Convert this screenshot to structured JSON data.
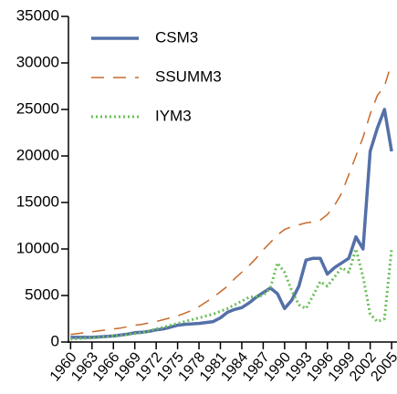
{
  "chart_data": {
    "type": "line",
    "x": [
      1960,
      1961,
      1962,
      1963,
      1964,
      1965,
      1966,
      1967,
      1968,
      1969,
      1970,
      1971,
      1972,
      1973,
      1974,
      1975,
      1976,
      1977,
      1978,
      1979,
      1980,
      1981,
      1982,
      1983,
      1984,
      1985,
      1986,
      1987,
      1988,
      1989,
      1990,
      1991,
      1992,
      1993,
      1994,
      1995,
      1996,
      1997,
      1998,
      1999,
      2000,
      2001,
      2002,
      2003,
      2004,
      2005
    ],
    "series": [
      {
        "name": "CSM3",
        "color": "#5470a8",
        "style": "solid",
        "values": [
          500,
          500,
          500,
          500,
          550,
          600,
          650,
          750,
          850,
          1000,
          1050,
          1150,
          1300,
          1400,
          1600,
          1800,
          1900,
          1950,
          2000,
          2100,
          2200,
          2600,
          3200,
          3500,
          3700,
          4200,
          4800,
          5300,
          5800,
          5200,
          3600,
          4500,
          6000,
          8800,
          9000,
          9000,
          7300,
          8000,
          8500,
          9000,
          11300,
          10000,
          20500,
          23000,
          25000,
          20500
        ]
      },
      {
        "name": "SSUMM3",
        "color": "#c8692a",
        "style": "dashed",
        "values": [
          800,
          900,
          1000,
          1100,
          1200,
          1300,
          1400,
          1500,
          1650,
          1800,
          1900,
          2050,
          2200,
          2400,
          2600,
          2800,
          3100,
          3400,
          3800,
          4300,
          4800,
          5400,
          6000,
          6800,
          7500,
          8200,
          9000,
          9900,
          10700,
          11500,
          12100,
          12400,
          12600,
          12800,
          12900,
          13100,
          13700,
          14700,
          16000,
          18000,
          20000,
          22000,
          24500,
          26500,
          27500,
          30000
        ]
      },
      {
        "name": "IYM3",
        "color": "#6bbf5a",
        "style": "dotted",
        "values": [
          300,
          350,
          400,
          450,
          500,
          600,
          650,
          700,
          800,
          900,
          1000,
          1200,
          1400,
          1600,
          1800,
          2000,
          2200,
          2400,
          2600,
          2800,
          3000,
          3300,
          3600,
          4000,
          4400,
          4800,
          4900,
          5000,
          5800,
          8500,
          7500,
          5500,
          4000,
          3600,
          5000,
          6500,
          6000,
          7000,
          8000,
          7500,
          10000,
          7000,
          3000,
          2200,
          2500,
          10000
        ]
      }
    ],
    "xlim": [
      1959.7,
      2005.5
    ],
    "xticks": [
      1960,
      1963,
      1966,
      1969,
      1972,
      1975,
      1978,
      1981,
      1984,
      1987,
      1990,
      1993,
      1996,
      1999,
      2002,
      2005
    ],
    "ylim": [
      0,
      35000
    ],
    "yticks": [
      0,
      5000,
      10000,
      15000,
      20000,
      25000,
      30000,
      35000
    ],
    "legend": "upper-left"
  }
}
